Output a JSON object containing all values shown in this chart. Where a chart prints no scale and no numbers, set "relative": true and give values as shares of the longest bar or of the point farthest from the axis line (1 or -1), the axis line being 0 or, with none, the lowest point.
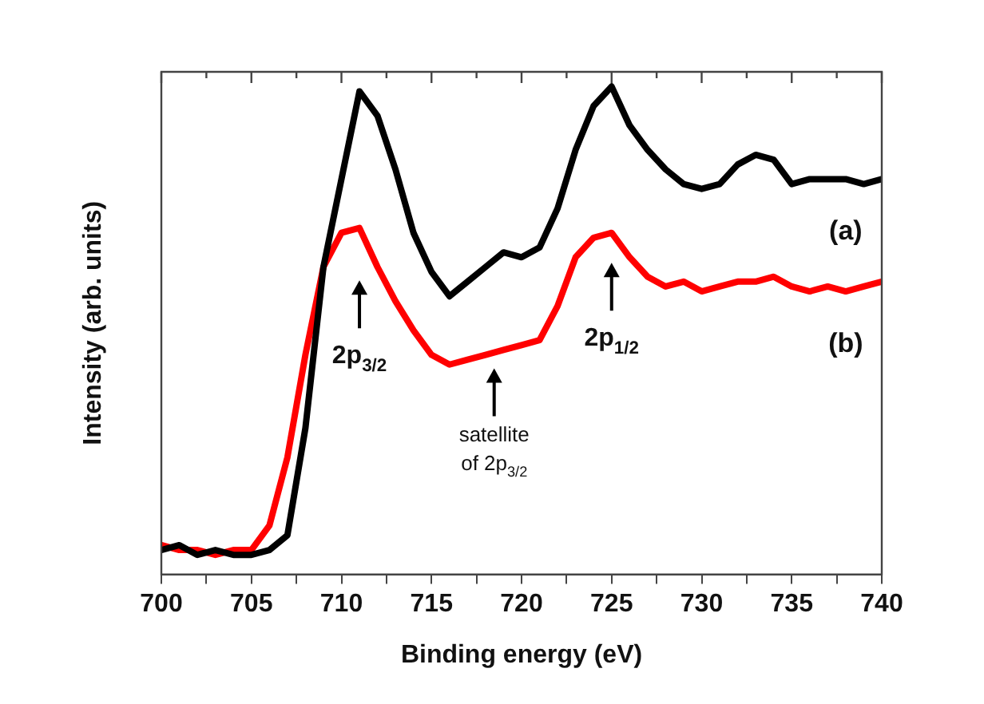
{
  "chart_data": {
    "type": "line",
    "xlabel": "Binding energy (eV)",
    "ylabel": "Intensity (arb. units)",
    "relative": true,
    "xlim": [
      700,
      740
    ],
    "xticks": [
      700,
      {
        "value": 702.5,
        "label": null
      },
      705,
      {
        "value": 707.5,
        "label": null
      },
      710,
      {
        "value": 712.5,
        "label": null
      },
      715,
      {
        "value": 717.5,
        "label": null
      },
      720,
      {
        "value": 722.5,
        "label": null
      },
      725,
      {
        "value": 727.5,
        "label": null
      },
      730,
      {
        "value": 732.5,
        "label": null
      },
      735,
      {
        "value": 737.5,
        "label": null
      },
      740
    ],
    "legend": false,
    "marker": "none",
    "line_style": "solid",
    "series": [
      {
        "name": "(a)",
        "color": "#000000",
        "x": [
          700,
          701,
          702,
          703,
          704,
          705,
          706,
          707,
          708,
          709,
          710,
          711,
          712,
          713,
          714,
          715,
          716,
          717,
          718,
          719,
          720,
          721,
          722,
          723,
          724,
          725,
          726,
          727,
          728,
          729,
          730,
          731,
          732,
          733,
          734,
          735,
          736,
          737,
          738,
          739,
          740
        ],
        "values": [
          0.05,
          0.06,
          0.04,
          0.05,
          0.04,
          0.04,
          0.05,
          0.08,
          0.3,
          0.63,
          0.81,
          0.99,
          0.94,
          0.83,
          0.7,
          0.62,
          0.57,
          0.6,
          0.63,
          0.66,
          0.65,
          0.67,
          0.75,
          0.87,
          0.96,
          1,
          0.92,
          0.87,
          0.83,
          0.8,
          0.79,
          0.8,
          0.84,
          0.86,
          0.85,
          0.8,
          0.81,
          0.81,
          0.81,
          0.8,
          0.81
        ]
      },
      {
        "name": "(b)",
        "color": "#ff0000",
        "x": [
          700,
          701,
          702,
          703,
          704,
          705,
          706,
          707,
          708,
          709,
          710,
          711,
          712,
          713,
          714,
          715,
          716,
          717,
          718,
          719,
          720,
          721,
          722,
          723,
          724,
          725,
          726,
          727,
          728,
          729,
          730,
          731,
          732,
          733,
          734,
          735,
          736,
          737,
          738,
          739,
          740
        ],
        "values": [
          0.06,
          0.05,
          0.05,
          0.04,
          0.05,
          0.05,
          0.1,
          0.24,
          0.45,
          0.63,
          0.7,
          0.71,
          0.63,
          0.56,
          0.5,
          0.45,
          0.43,
          0.44,
          0.45,
          0.46,
          0.47,
          0.48,
          0.55,
          0.65,
          0.69,
          0.7,
          0.65,
          0.61,
          0.59,
          0.6,
          0.58,
          0.59,
          0.6,
          0.6,
          0.61,
          0.59,
          0.58,
          0.59,
          0.58,
          0.59,
          0.6
        ]
      }
    ],
    "annotations": [
      "2p$_{3/2}$",
      "satellite of 2p$_{3/2}$",
      "2p$_{1/2}$"
    ]
  }
}
